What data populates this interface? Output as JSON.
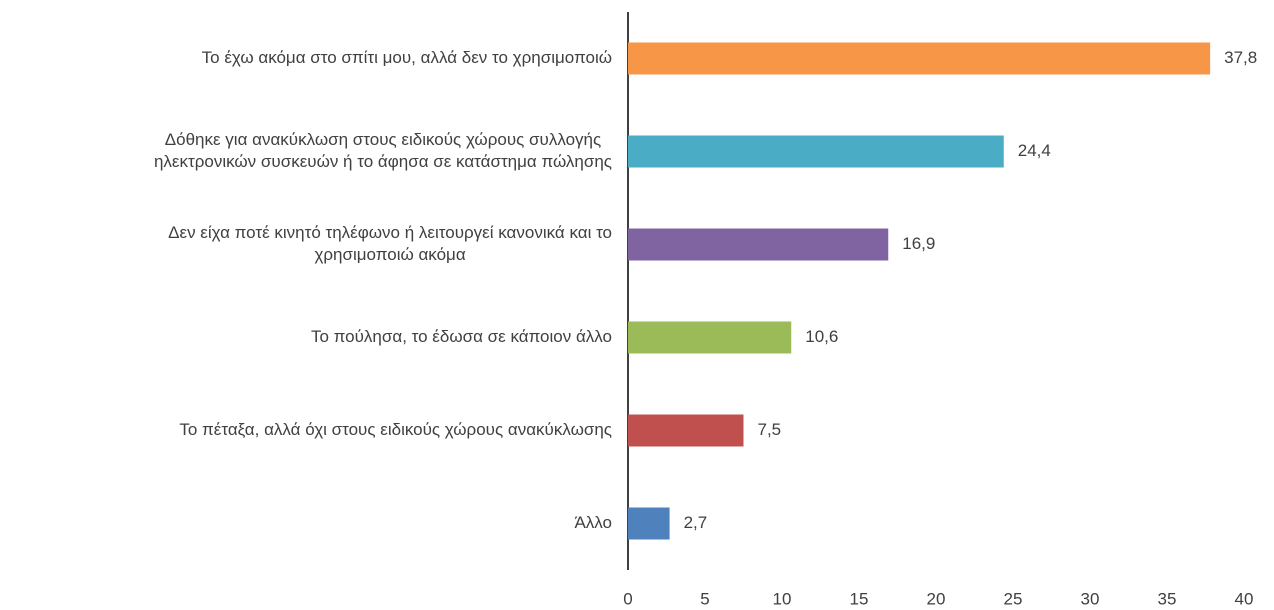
{
  "chart_data": {
    "type": "hbar",
    "categories": [
      [
        "Το έχω ακόμα στο σπίτι μου, αλλά δεν το χρησιμοποιώ"
      ],
      [
        "Δόθηκε για ανακύκλωση στους ειδικούς χώρους συλλογής",
        "ηλεκτρονικών συσκευών ή το άφησα σε κατάστημα πώλησης"
      ],
      [
        "Δεν είχα ποτέ κινητό τηλέφωνο ή λειτουργεί κανονικά και το",
        "χρησιμοποιώ ακόμα"
      ],
      [
        "Το πούλησα, το έδωσα σε κάποιον άλλο"
      ],
      [
        "Το πέταξα, αλλά όχι στους ειδικούς χώρους ανακύκλωσης"
      ],
      [
        "Άλλο"
      ]
    ],
    "values": [
      37.8,
      24.4,
      16.9,
      10.6,
      7.5,
      2.7
    ],
    "value_labels": [
      "37,8",
      "24,4",
      "16,9",
      "10,6",
      "7,5",
      "2,7"
    ],
    "colors": [
      "#f79646",
      "#4bacc6",
      "#8064a2",
      "#9bbb59",
      "#c0504d",
      "#4f81bd"
    ],
    "xlim": [
      0,
      40
    ],
    "xticks": [
      0,
      5,
      10,
      15,
      20,
      25,
      30,
      35,
      40
    ],
    "grid": false
  }
}
